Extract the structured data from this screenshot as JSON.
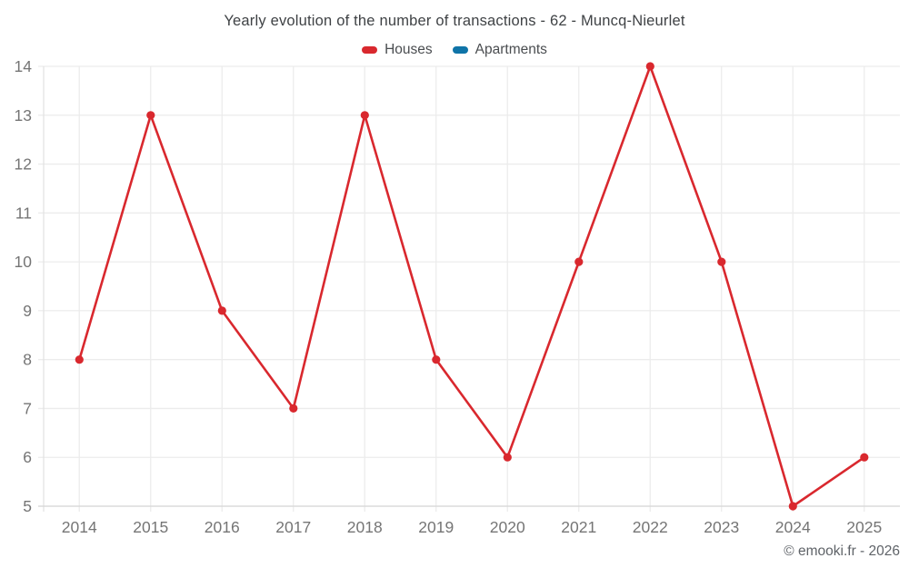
{
  "header": {
    "title": "Yearly evolution of the number of transactions - 62 - Muncq-Nieurlet"
  },
  "footer": {
    "copyright": "© emooki.fr - 2026"
  },
  "colors": {
    "houses": "#d9282e",
    "apartments": "#0f74a8",
    "grid": "#ececec",
    "axis_line": "#d6d6d6",
    "plot_border": "#e3e3e3",
    "tick_text": "#757575"
  },
  "chart_data": {
    "type": "line",
    "title": "Yearly evolution of the number of transactions - 62 - Muncq-Nieurlet",
    "categories": [
      "2014",
      "2015",
      "2016",
      "2017",
      "2018",
      "2019",
      "2020",
      "2021",
      "2022",
      "2023",
      "2024",
      "2025"
    ],
    "series": [
      {
        "name": "Houses",
        "color": "#d9282e",
        "values": [
          8,
          13,
          9,
          7,
          13,
          8,
          6,
          10,
          14,
          10,
          5,
          6
        ]
      },
      {
        "name": "Apartments",
        "color": "#0f74a8",
        "values": []
      }
    ],
    "xlabel": "",
    "ylabel": "",
    "ylim": [
      5,
      14
    ],
    "yticks": [
      5,
      6,
      7,
      8,
      9,
      10,
      11,
      12,
      13,
      14
    ],
    "grid": true,
    "legend_position": "top"
  }
}
